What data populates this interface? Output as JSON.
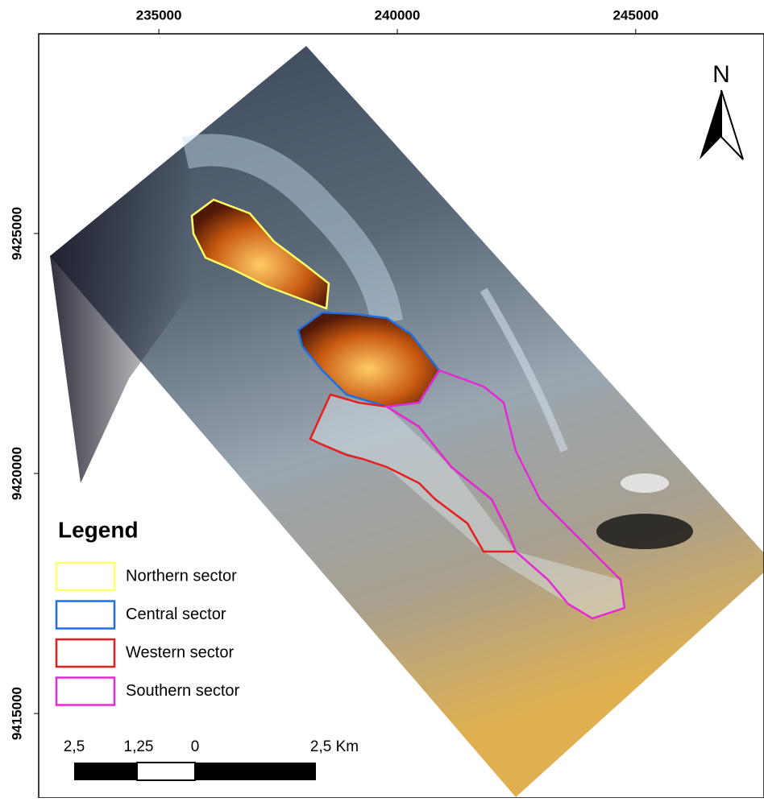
{
  "map": {
    "xticks": [
      235000,
      240000,
      245000
    ],
    "yticks": [
      9425000,
      9420000,
      9415000
    ],
    "xlim": [
      232480,
      247690
    ],
    "ylim": [
      9413240,
      9429160
    ],
    "north_label": "N",
    "legend": {
      "title": "Legend",
      "items": [
        {
          "name": "Northern sector",
          "color": "#ffff66"
        },
        {
          "name": "Central sector",
          "color": "#1e6fe0"
        },
        {
          "name": "Western sector",
          "color": "#e51e1e"
        },
        {
          "name": "Southern sector",
          "color": "#e32ad6"
        }
      ]
    },
    "scale_bar": {
      "labels": [
        "2,5",
        "1,25",
        "0",
        "2,5 Km"
      ]
    }
  }
}
